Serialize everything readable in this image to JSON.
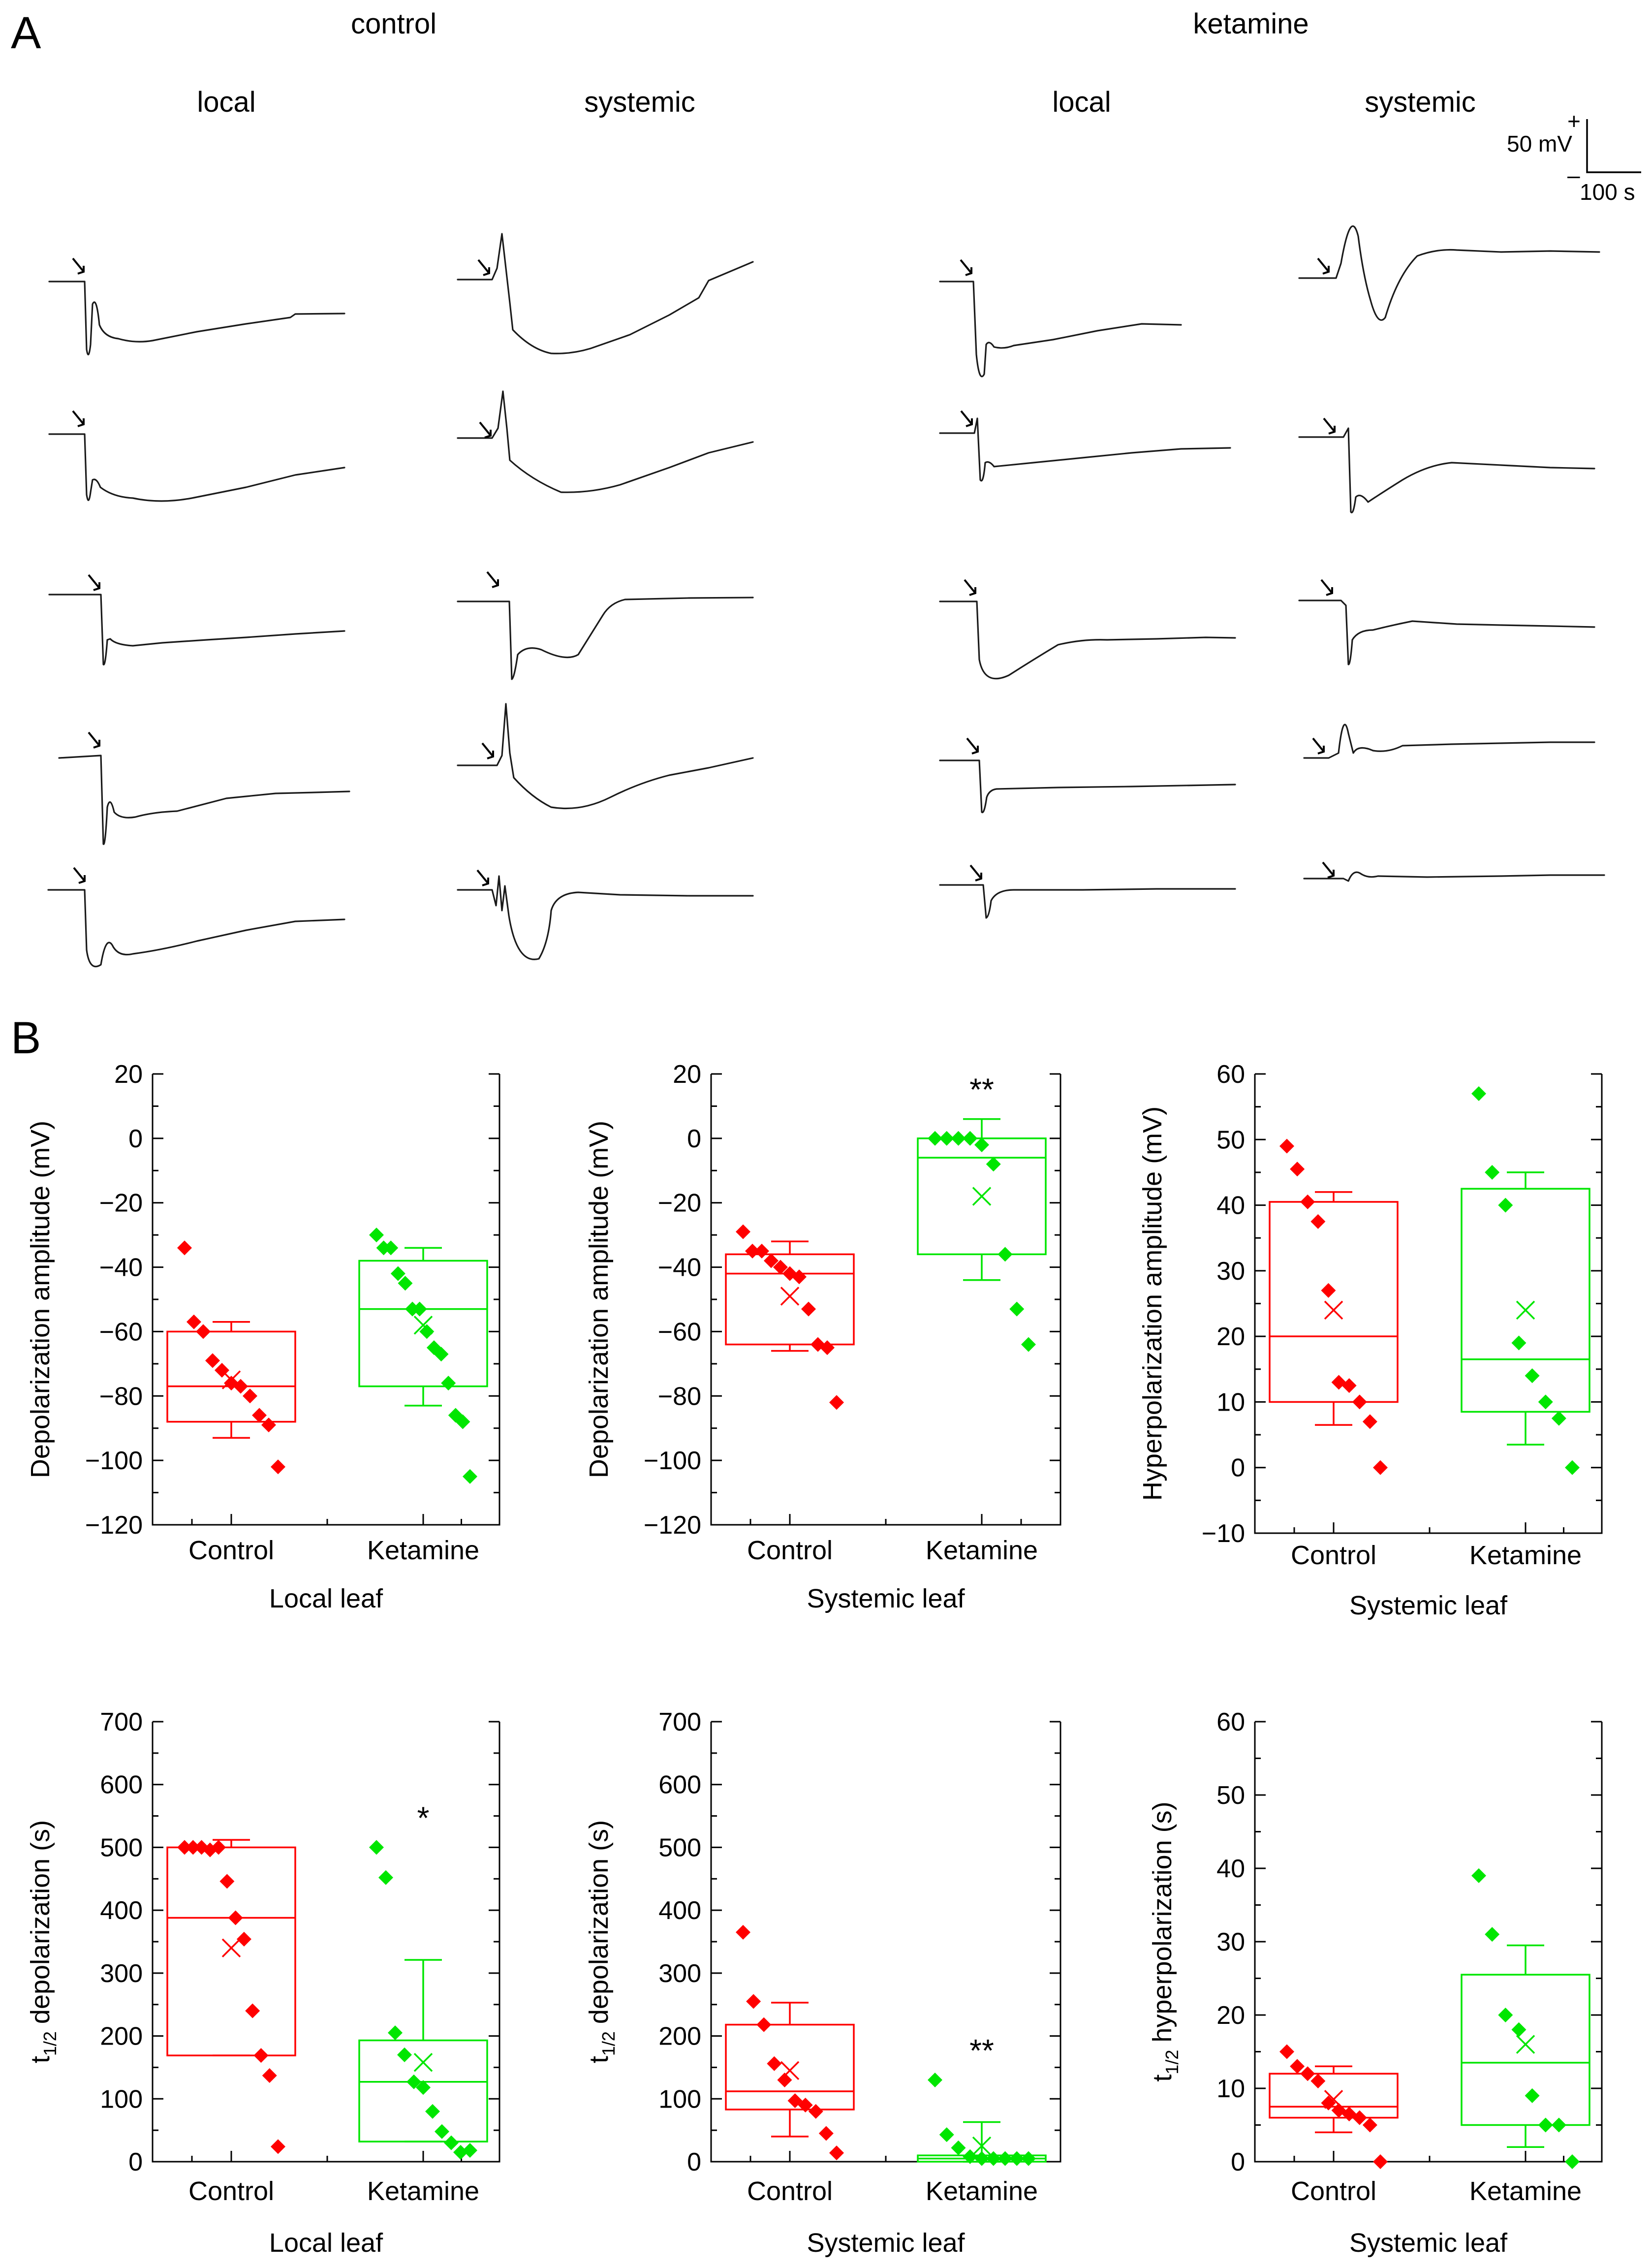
{
  "panel_a": {
    "panel_label": "A",
    "groups": [
      {
        "name": "control",
        "conditions": [
          "local",
          "systemic"
        ]
      },
      {
        "name": "ketamine",
        "conditions": [
          "local",
          "systemic"
        ]
      }
    ],
    "scale_bar": {
      "plus": "+",
      "minus": "–",
      "voltage_label": "50 mV",
      "time_label": "100 s"
    },
    "traces_per_column": 5
  },
  "panel_b": {
    "panel_label": "B"
  },
  "colors": {
    "control": "#ff0000",
    "ketamine": "#00e600",
    "text": "#000000"
  },
  "chart_data": [
    {
      "type": "box",
      "title": "",
      "ylabel": "Depolarization amplitude (mV)",
      "xlabel": "Local leaf",
      "ylim": [
        -120,
        20
      ],
      "yticks": [
        -120,
        -100,
        -80,
        -60,
        -40,
        -20,
        0,
        20
      ],
      "ytick_labels": [
        "−120",
        "−100",
        "−80",
        "−60",
        "−40",
        "−20",
        "0",
        "20"
      ],
      "yminor_step": 10,
      "categories": [
        "Control",
        "Ketamine"
      ],
      "annotation": "",
      "series": [
        {
          "name": "Control",
          "color": "#ff0000",
          "q1": -88,
          "median": -77,
          "q3": -60,
          "mean": -75,
          "whisker_low": -93,
          "whisker_high": -57,
          "points": [
            -34,
            -57,
            -60,
            -69,
            -72,
            -76,
            -77,
            -80,
            -86,
            -89,
            -102
          ]
        },
        {
          "name": "Ketamine",
          "color": "#00e600",
          "q1": -77,
          "median": -53,
          "q3": -38,
          "mean": -58,
          "whisker_low": -83,
          "whisker_high": -34,
          "points": [
            -30,
            -34,
            -34,
            -42,
            -45,
            -53,
            -53,
            -60,
            -65,
            -67,
            -76,
            -86,
            -88,
            -105
          ]
        }
      ]
    },
    {
      "type": "box",
      "title": "",
      "ylabel": "Depolarization amplitude (mV)",
      "xlabel": "Systemic leaf",
      "ylim": [
        -120,
        20
      ],
      "yticks": [
        -120,
        -100,
        -80,
        -60,
        -40,
        -20,
        0,
        20
      ],
      "ytick_labels": [
        "−120",
        "−100",
        "−80",
        "−60",
        "−40",
        "−20",
        "0",
        "20"
      ],
      "yminor_step": 10,
      "categories": [
        "Control",
        "Ketamine"
      ],
      "annotation": "**",
      "series": [
        {
          "name": "Control",
          "color": "#ff0000",
          "q1": -64,
          "median": -42,
          "q3": -36,
          "mean": -49,
          "whisker_low": -66,
          "whisker_high": -32,
          "points": [
            -29,
            -35,
            -35,
            -38,
            -40,
            -42,
            -43,
            -53,
            -64,
            -65,
            -82
          ]
        },
        {
          "name": "Ketamine",
          "color": "#00e600",
          "q1": -36,
          "median": -6,
          "q3": 0,
          "mean": -18,
          "whisker_low": -44,
          "whisker_high": 6,
          "points": [
            0,
            0,
            0,
            0,
            -2,
            -8,
            -36,
            -53,
            -64
          ]
        }
      ]
    },
    {
      "type": "box",
      "title": "",
      "ylabel": "Hyperpolarization amplitude (mV)",
      "xlabel": "Systemic leaf",
      "ylim": [
        -10,
        60
      ],
      "yticks": [
        -10,
        0,
        10,
        20,
        30,
        40,
        50,
        60
      ],
      "ytick_labels": [
        "−10",
        "0",
        "10",
        "20",
        "30",
        "40",
        "50",
        "60"
      ],
      "yminor_step": 5,
      "categories": [
        "Control",
        "Ketamine"
      ],
      "annotation": "",
      "series": [
        {
          "name": "Control",
          "color": "#ff0000",
          "q1": 10,
          "median": 20,
          "q3": 40.5,
          "mean": 24,
          "whisker_low": 6.5,
          "whisker_high": 42,
          "points": [
            49,
            45.5,
            40.5,
            37.5,
            27,
            13,
            12.5,
            10,
            7,
            0
          ]
        },
        {
          "name": "Ketamine",
          "color": "#00e600",
          "q1": 8.5,
          "median": 16.5,
          "q3": 42.5,
          "mean": 24,
          "whisker_low": 3.5,
          "whisker_high": 45,
          "points": [
            57,
            45,
            40,
            19,
            14,
            10,
            7.5,
            0
          ]
        }
      ]
    },
    {
      "type": "box",
      "title": "",
      "ylabel": "t1/2 depolarization (s)",
      "ylabel_parts": {
        "t": "t",
        "sub": "1/2",
        "rest": " depolarization (s)"
      },
      "xlabel": "Local leaf",
      "ylim": [
        0,
        700
      ],
      "yticks": [
        0,
        100,
        200,
        300,
        400,
        500,
        600,
        700
      ],
      "ytick_labels": [
        "0",
        "100",
        "200",
        "300",
        "400",
        "500",
        "600",
        "700"
      ],
      "yminor_step": 50,
      "categories": [
        "Control",
        "Ketamine"
      ],
      "annotation": "*",
      "series": [
        {
          "name": "Control",
          "color": "#ff0000",
          "q1": 169,
          "median": 388,
          "q3": 500,
          "mean": 340,
          "whisker_low": 169,
          "whisker_high": 512,
          "points": [
            500,
            500,
            500,
            496,
            500,
            446,
            388,
            354,
            240,
            169,
            137,
            24
          ]
        },
        {
          "name": "Ketamine",
          "color": "#00e600",
          "q1": 32,
          "median": 127,
          "q3": 193,
          "mean": 158,
          "whisker_low": 32,
          "whisker_high": 321,
          "points": [
            500,
            452,
            205,
            170,
            127,
            118,
            80,
            48,
            30,
            15,
            18
          ]
        }
      ]
    },
    {
      "type": "box",
      "title": "",
      "ylabel": "t1/2 depolarization (s)",
      "ylabel_parts": {
        "t": "t",
        "sub": "1/2",
        "rest": " depolarization (s)"
      },
      "xlabel": "Systemic leaf",
      "ylim": [
        0,
        700
      ],
      "yticks": [
        0,
        100,
        200,
        300,
        400,
        500,
        600,
        700
      ],
      "ytick_labels": [
        "0",
        "100",
        "200",
        "300",
        "400",
        "500",
        "600",
        "700"
      ],
      "yminor_step": 50,
      "categories": [
        "Control",
        "Ketamine"
      ],
      "annotation": "**",
      "series": [
        {
          "name": "Control",
          "color": "#ff0000",
          "q1": 83,
          "median": 112,
          "q3": 218,
          "mean": 145,
          "whisker_low": 40,
          "whisker_high": 253,
          "points": [
            365,
            255,
            218,
            156,
            130,
            97,
            90,
            80,
            45,
            14
          ]
        },
        {
          "name": "Ketamine",
          "color": "#00e600",
          "q1": 0,
          "median": 5,
          "q3": 10,
          "mean": 25,
          "whisker_low": 0,
          "whisker_high": 63,
          "points": [
            130,
            43,
            22,
            8,
            5,
            5,
            5,
            5,
            5
          ]
        }
      ]
    },
    {
      "type": "box",
      "title": "",
      "ylabel": "t1/2 hyperpolarization (s)",
      "ylabel_parts": {
        "t": "t",
        "sub": "1/2",
        "rest": " hyperpolarization (s)"
      },
      "xlabel": "Systemic leaf",
      "ylim": [
        0,
        60
      ],
      "yticks": [
        0,
        10,
        20,
        30,
        40,
        50,
        60
      ],
      "ytick_labels": [
        "0",
        "10",
        "20",
        "30",
        "40",
        "50",
        "60"
      ],
      "yminor_step": 5,
      "categories": [
        "Control",
        "Ketamine"
      ],
      "annotation": "",
      "series": [
        {
          "name": "Control",
          "color": "#ff0000",
          "q1": 6,
          "median": 7.5,
          "q3": 12,
          "mean": 8.5,
          "whisker_low": 4,
          "whisker_high": 13,
          "points": [
            15,
            13,
            12,
            11,
            8,
            7,
            6.5,
            6,
            5,
            0
          ]
        },
        {
          "name": "Ketamine",
          "color": "#00e600",
          "q1": 5,
          "median": 13.5,
          "q3": 25.5,
          "mean": 16,
          "whisker_low": 2,
          "whisker_high": 29.5,
          "points": [
            39,
            31,
            20,
            18,
            9,
            5,
            5,
            0
          ]
        }
      ]
    }
  ]
}
